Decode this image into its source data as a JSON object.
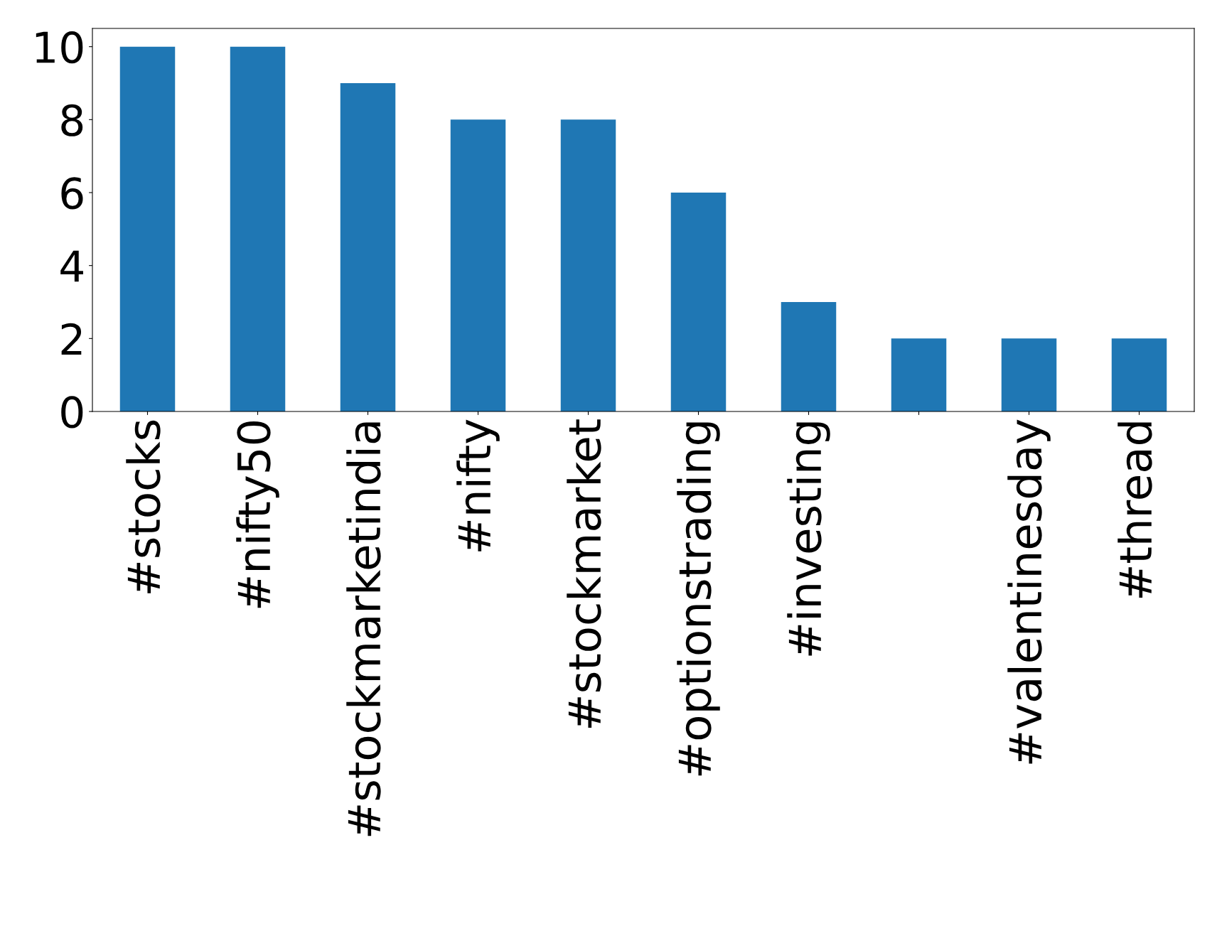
{
  "chart_data": {
    "type": "bar",
    "categories": [
      "#stocks",
      "#nifty50",
      "#stockmarketindia",
      "#nifty",
      "#stockmarket",
      "#optionstrading",
      "#investing",
      null,
      "#valentinesday",
      "#thread"
    ],
    "values": [
      10,
      10,
      9,
      8,
      8,
      6,
      3,
      2,
      2,
      2
    ],
    "color": "#1f77b4",
    "ylim": [
      0,
      10.5
    ],
    "yticks": [
      0,
      2,
      4,
      6,
      8,
      10
    ],
    "grid": false
  }
}
